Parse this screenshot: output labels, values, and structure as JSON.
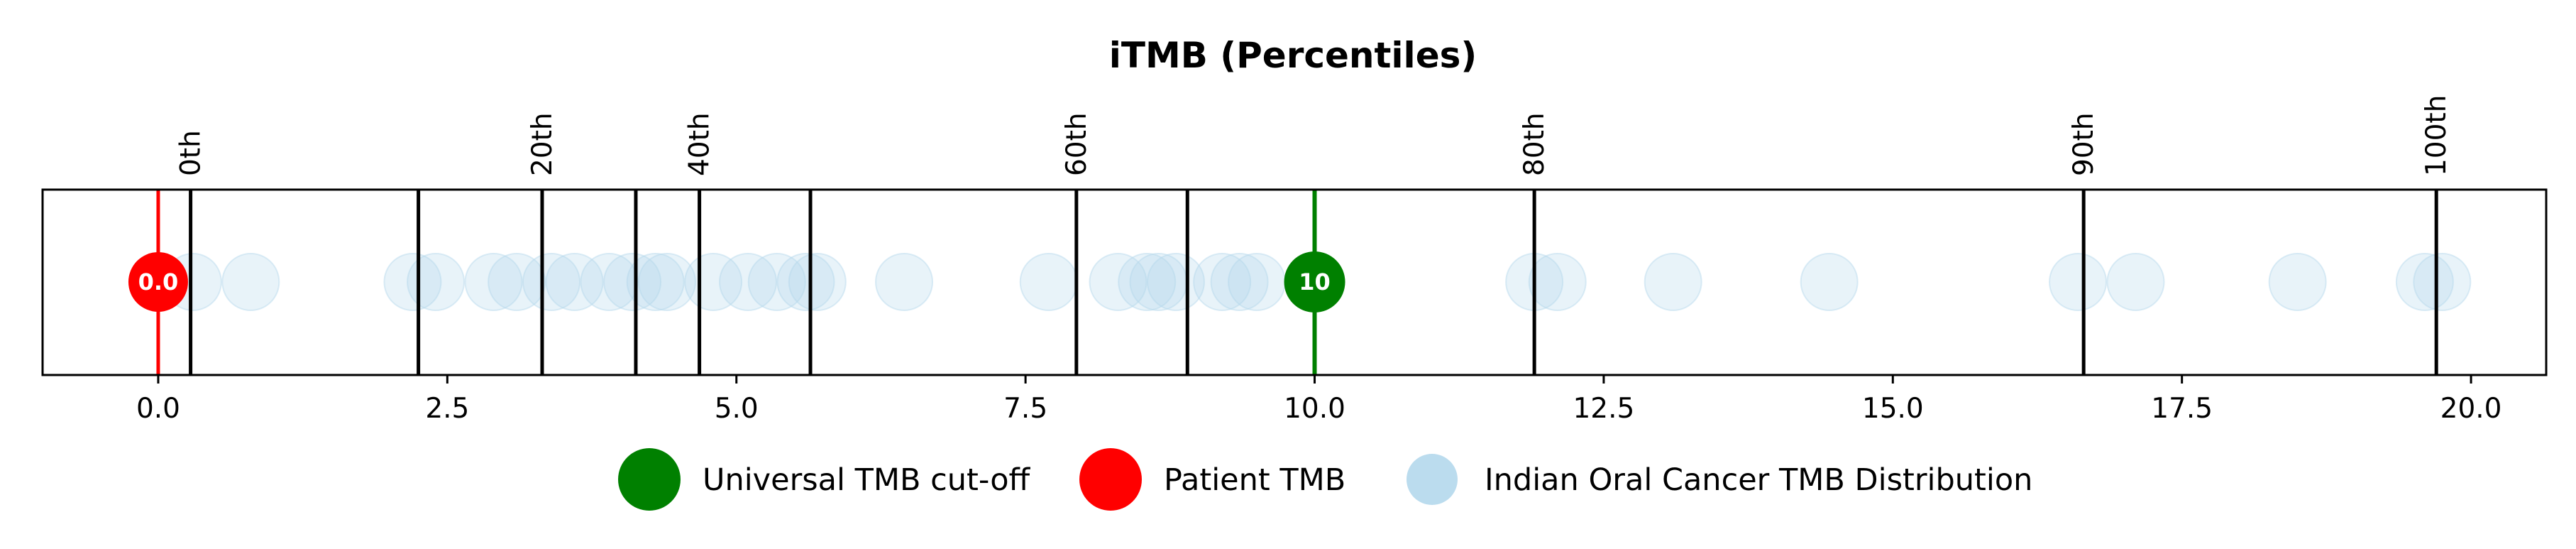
{
  "chart_data": {
    "type": "scatter",
    "title": "iTMB (Percentiles)",
    "xlabel": "",
    "ylabel": "",
    "xlim": [
      -1.0,
      20.65
    ],
    "x_ticks": [
      0.0,
      2.5,
      5.0,
      7.5,
      10.0,
      12.5,
      15.0,
      17.5,
      20.0
    ],
    "x_tick_labels": [
      "0.0",
      "2.5",
      "5.0",
      "7.5",
      "10.0",
      "12.5",
      "15.0",
      "17.5",
      "20.0"
    ],
    "grid": false,
    "percentile_lines": [
      0.28,
      2.25,
      3.32,
      4.13,
      4.68,
      5.64,
      7.94,
      8.9,
      11.9,
      16.65,
      19.7
    ],
    "percentile_labels": [
      {
        "label": "0th",
        "x": 0.28
      },
      {
        "label": "20th",
        "x": 3.32
      },
      {
        "label": "40th",
        "x": 4.68
      },
      {
        "label": "60th",
        "x": 7.94
      },
      {
        "label": "80th",
        "x": 11.9
      },
      {
        "label": "90th",
        "x": 16.65
      },
      {
        "label": "100th",
        "x": 19.7
      }
    ],
    "series": [
      {
        "name": "Indian Oral Cancer TMB Distribution",
        "color": "#b4d8ec",
        "x": [
          0.3,
          0.8,
          2.2,
          2.4,
          2.9,
          3.1,
          3.4,
          3.6,
          3.9,
          4.1,
          4.3,
          4.4,
          4.8,
          5.1,
          5.35,
          5.6,
          5.7,
          6.45,
          7.7,
          8.3,
          8.55,
          8.65,
          8.8,
          9.2,
          9.35,
          9.5,
          11.9,
          12.1,
          13.1,
          14.45,
          16.6,
          17.1,
          18.5,
          19.6,
          19.75
        ],
        "y": [
          0,
          0,
          0,
          0,
          0,
          0,
          0,
          0,
          0,
          0,
          0,
          0,
          0,
          0,
          0,
          0,
          0,
          0,
          0,
          0,
          0,
          0,
          0,
          0,
          0,
          0,
          0,
          0,
          0,
          0,
          0,
          0,
          0,
          0,
          0
        ]
      },
      {
        "name": "Patient TMB",
        "color": "#ff0000",
        "x": [
          0.0
        ],
        "value_label": "0.0"
      },
      {
        "name": "Universal TMB cut-off",
        "color": "#008000",
        "x": [
          10.0
        ],
        "value_label": "10"
      }
    ],
    "legend": {
      "placement": "bottom-center",
      "entries": [
        {
          "label": "Universal TMB cut-off",
          "color": "#008000"
        },
        {
          "label": "Patient TMB",
          "color": "#ff0000"
        },
        {
          "label": "Indian Oral Cancer TMB Distribution",
          "color": "#b4d8ec"
        }
      ]
    }
  }
}
